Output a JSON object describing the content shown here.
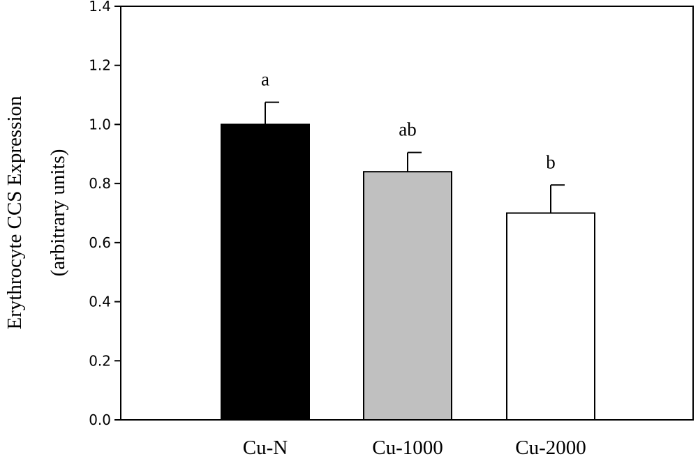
{
  "chart_data": {
    "type": "bar",
    "title": "",
    "xlabel": "",
    "ylabel_lines": [
      "Erythrocyte CCS Expression",
      "(arbitrary units)"
    ],
    "ylim": [
      0,
      1.4
    ],
    "yticks": [
      "0.0",
      "0.2",
      "0.4",
      "0.6",
      "0.8",
      "1.0",
      "1.2",
      "1.4"
    ],
    "categories": [
      "Cu-N",
      "Cu-1000",
      "Cu-2000"
    ],
    "values": [
      1.0,
      0.84,
      0.7
    ],
    "errors": [
      0.075,
      0.065,
      0.095
    ],
    "significance": [
      "a",
      "ab",
      "b"
    ],
    "bar_colors": [
      "#000000",
      "#c0c0c0",
      "#ffffff"
    ],
    "grid": false,
    "legend": "none"
  }
}
